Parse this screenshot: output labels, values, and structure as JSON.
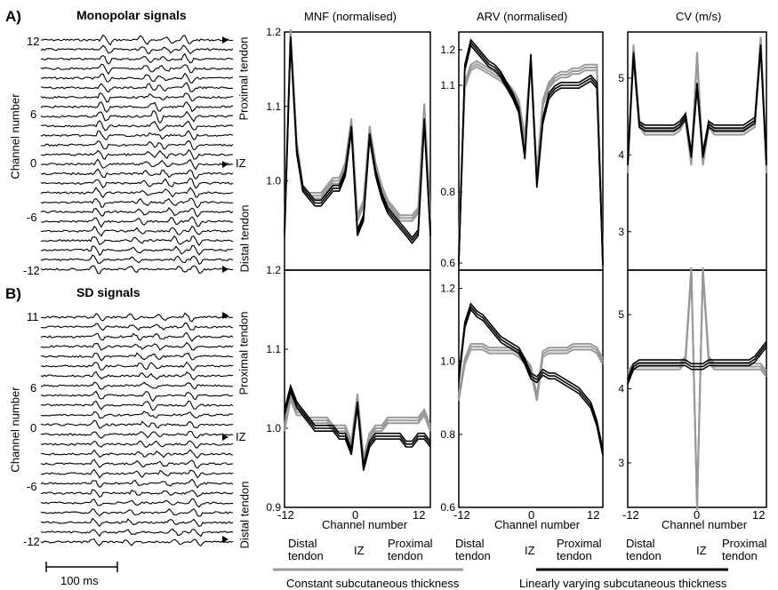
{
  "panel_a": {
    "letter": "A)",
    "title": "Monopolar signals",
    "ylabel": "Channel number",
    "ticks": [
      "12",
      "6",
      "0",
      "-6",
      "-12"
    ],
    "right_top": "Proximal tendon",
    "right_mid": "IZ",
    "right_bottom": "Distal tendon"
  },
  "panel_b": {
    "letter": "B)",
    "title": "SD signals",
    "ylabel": "Channel number",
    "ticks": [
      "11",
      "6",
      "0",
      "-6",
      "-12"
    ],
    "right_top": "Proximal tendon",
    "right_mid": "IZ",
    "right_bottom": "Distal tendon"
  },
  "scalebar": "100 ms",
  "column_titles": [
    "MNF (normalised)",
    "ARV (normalised)",
    "CV (m/s)"
  ],
  "x_axis": {
    "label": "Channel number",
    "ticks": [
      "-12",
      "0",
      "12"
    ],
    "distal": "Distal tendon",
    "iz": "IZ",
    "proximal": "Proximal tendon"
  },
  "legend": {
    "gray": "Constant subcutaneous thickness",
    "black": "Linearly varying subcutaneous thickness",
    "gray_color": "#999999",
    "black_color": "#000000"
  },
  "chart_data": [
    {
      "type": "line",
      "title": "MNF (normalised)",
      "ylim": [
        0.88,
        1.2
      ],
      "yticks": [
        "1.2",
        "1.1",
        "1.0"
      ],
      "x": [
        -12,
        -11,
        -10,
        -9,
        -8,
        -7,
        -6,
        -5,
        -4,
        -3,
        -2,
        -1,
        0,
        1,
        2,
        3,
        4,
        5,
        6,
        7,
        8,
        9,
        10,
        11,
        12
      ],
      "series": [
        {
          "color": "gray",
          "values": [
            0.93,
            1.2,
            1.05,
            0.99,
            0.98,
            0.98,
            0.98,
            0.99,
            1.0,
            1.0,
            1.02,
            1.08,
            0.95,
            0.97,
            1.07,
            1.02,
            0.99,
            0.97,
            0.96,
            0.95,
            0.95,
            0.95,
            0.96,
            1.1,
            0.95
          ]
        },
        {
          "color": "black",
          "values": [
            0.93,
            1.19,
            1.04,
            0.99,
            0.98,
            0.97,
            0.97,
            0.98,
            0.99,
            0.99,
            1.01,
            1.07,
            0.93,
            0.95,
            1.06,
            1.01,
            0.98,
            0.96,
            0.95,
            0.94,
            0.93,
            0.92,
            0.93,
            1.08,
            0.93
          ]
        }
      ]
    },
    {
      "type": "line",
      "title": "ARV (normalised)",
      "ylim": [
        0.58,
        1.25
      ],
      "yticks": [
        "1.2",
        "1.1",
        "0.8",
        "0.6"
      ],
      "x": [
        -12,
        -11,
        -10,
        -9,
        -8,
        -7,
        -6,
        -5,
        -4,
        -3,
        -2,
        -1,
        0,
        1,
        2,
        3,
        4,
        5,
        6,
        7,
        8,
        9,
        10,
        11,
        12
      ],
      "series": [
        {
          "color": "gray",
          "values": [
            0.65,
            1.1,
            1.15,
            1.16,
            1.15,
            1.14,
            1.13,
            1.12,
            1.1,
            1.08,
            1.05,
            0.95,
            1.17,
            0.85,
            1.05,
            1.1,
            1.12,
            1.13,
            1.13,
            1.14,
            1.14,
            1.15,
            1.15,
            1.15,
            0.6
          ]
        },
        {
          "color": "black",
          "values": [
            0.6,
            1.15,
            1.22,
            1.2,
            1.18,
            1.16,
            1.15,
            1.13,
            1.1,
            1.07,
            1.03,
            0.9,
            1.18,
            0.82,
            1.0,
            1.07,
            1.09,
            1.1,
            1.1,
            1.1,
            1.1,
            1.11,
            1.12,
            1.1,
            0.6
          ]
        }
      ]
    },
    {
      "type": "line",
      "title": "CV (m/s)",
      "ylim": [
        2.5,
        5.6
      ],
      "yticks": [
        "5",
        "4",
        "3"
      ],
      "x": [
        -12,
        -11,
        -10,
        -9,
        -8,
        -7,
        -6,
        -5,
        -4,
        -3,
        -2,
        -1,
        0,
        1,
        2,
        3,
        4,
        5,
        6,
        7,
        8,
        9,
        10,
        11,
        12
      ],
      "series": [
        {
          "color": "gray",
          "values": [
            3.8,
            5.4,
            4.4,
            4.3,
            4.3,
            4.3,
            4.3,
            4.3,
            4.3,
            4.35,
            4.5,
            3.9,
            5.3,
            3.9,
            4.4,
            4.3,
            4.3,
            4.3,
            4.3,
            4.3,
            4.3,
            4.35,
            4.4,
            5.5,
            3.8
          ]
        },
        {
          "color": "black",
          "values": [
            3.9,
            5.3,
            4.4,
            4.35,
            4.35,
            4.35,
            4.35,
            4.35,
            4.35,
            4.4,
            4.5,
            4.0,
            4.9,
            4.0,
            4.4,
            4.35,
            4.35,
            4.35,
            4.35,
            4.35,
            4.35,
            4.4,
            4.45,
            5.4,
            3.9
          ]
        }
      ]
    },
    {
      "type": "line",
      "title": "",
      "ylim": [
        0.9,
        1.2
      ],
      "yticks": [
        "1.2",
        "1.1",
        "1.0",
        "0.9"
      ],
      "x": [
        -12,
        -11,
        -10,
        -9,
        -8,
        -7,
        -6,
        -5,
        -4,
        -3,
        -2,
        -1,
        0,
        1,
        2,
        3,
        4,
        5,
        6,
        7,
        8,
        9,
        10,
        11,
        12
      ],
      "series": [
        {
          "color": "gray",
          "values": [
            1.0,
            1.04,
            1.02,
            1.02,
            1.01,
            1.01,
            1.01,
            1.01,
            1.0,
            1.0,
            1.0,
            0.98,
            1.04,
            0.96,
            0.99,
            1.0,
            1.0,
            1.01,
            1.01,
            1.01,
            1.01,
            1.01,
            1.01,
            1.02,
            1.0
          ]
        },
        {
          "color": "black",
          "values": [
            1.02,
            1.05,
            1.03,
            1.02,
            1.01,
            1.0,
            1.0,
            1.0,
            1.0,
            0.99,
            0.99,
            0.97,
            1.03,
            0.95,
            0.98,
            0.99,
            0.99,
            0.99,
            0.99,
            0.99,
            0.98,
            0.98,
            0.99,
            0.99,
            0.98
          ]
        }
      ]
    },
    {
      "type": "line",
      "title": "",
      "ylim": [
        0.6,
        1.25
      ],
      "yticks": [
        "1.2",
        "1.0",
        "0.8",
        "0.6"
      ],
      "x": [
        -12,
        -11,
        -10,
        -9,
        -8,
        -7,
        -6,
        -5,
        -4,
        -3,
        -2,
        -1,
        0,
        1,
        2,
        3,
        4,
        5,
        6,
        7,
        8,
        9,
        10,
        11,
        12
      ],
      "series": [
        {
          "color": "gray",
          "values": [
            0.9,
            1.0,
            1.04,
            1.04,
            1.04,
            1.03,
            1.03,
            1.03,
            1.03,
            1.03,
            1.02,
            1.0,
            0.98,
            0.9,
            1.02,
            1.03,
            1.03,
            1.03,
            1.03,
            1.04,
            1.04,
            1.04,
            1.04,
            1.03,
            1.0
          ]
        },
        {
          "color": "black",
          "values": [
            0.95,
            1.1,
            1.15,
            1.13,
            1.12,
            1.1,
            1.08,
            1.06,
            1.05,
            1.04,
            1.03,
            1.0,
            0.96,
            0.95,
            0.97,
            0.96,
            0.96,
            0.95,
            0.94,
            0.93,
            0.92,
            0.9,
            0.88,
            0.83,
            0.75
          ]
        }
      ]
    },
    {
      "type": "line",
      "title": "",
      "ylim": [
        2.4,
        5.6
      ],
      "yticks": [
        "5",
        "4",
        "3"
      ],
      "x": [
        -12,
        -11,
        -10,
        -9,
        -8,
        -7,
        -6,
        -5,
        -4,
        -3,
        -2,
        -1,
        0,
        1,
        2,
        3,
        4,
        5,
        6,
        7,
        8,
        9,
        10,
        11,
        12
      ],
      "series": [
        {
          "color": "gray",
          "values": [
            4.2,
            4.3,
            4.3,
            4.3,
            4.3,
            4.3,
            4.3,
            4.3,
            4.3,
            4.3,
            4.4,
            5.6,
            2.4,
            5.6,
            4.4,
            4.3,
            4.3,
            4.3,
            4.3,
            4.3,
            4.3,
            4.3,
            4.3,
            4.3,
            4.2
          ]
        },
        {
          "color": "black",
          "values": [
            4.1,
            4.3,
            4.35,
            4.35,
            4.35,
            4.35,
            4.35,
            4.35,
            4.35,
            4.35,
            4.35,
            4.3,
            4.3,
            4.3,
            4.35,
            4.35,
            4.35,
            4.35,
            4.35,
            4.35,
            4.35,
            4.35,
            4.4,
            4.5,
            4.6
          ]
        }
      ]
    }
  ]
}
